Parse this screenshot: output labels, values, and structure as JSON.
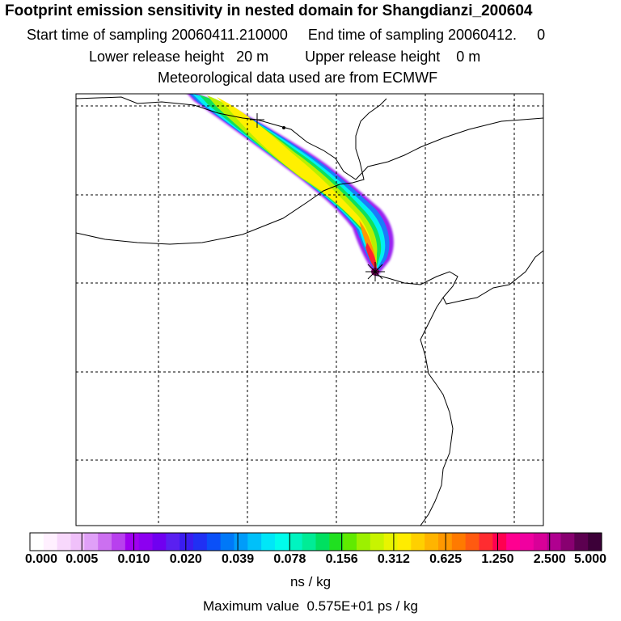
{
  "header": {
    "title": "Footprint emission sensitivity in nested domain for Shangdianzi_200604",
    "sampling_line": "Start time of sampling 20060411.210000     End time of sampling 20060412.     0",
    "release_line": "Lower release height   20 m         Upper release height    0 m",
    "met_line": "Meteorological data used are from ECMWF"
  },
  "legend": {
    "tick_labels": [
      "0.000",
      "0.005",
      "0.010",
      "0.020",
      "0.039",
      "0.078",
      "0.156",
      "0.312",
      "0.625",
      "1.250",
      "2.500",
      "5.000"
    ],
    "units": "ns / kg",
    "max_value_text": "Maximum value  0.575E+01 ps / kg",
    "colors": [
      "#ffffff",
      "#fff0ff",
      "#f8d8fc",
      "#f0c0fa",
      "#e0a0f8",
      "#cc70f0",
      "#b840ee",
      "#a000f0",
      "#8c00f0",
      "#7000f0",
      "#5a20f0",
      "#3a1cf0",
      "#2030f4",
      "#0a50f8",
      "#0078f8",
      "#009cfa",
      "#00c0fa",
      "#00e6f8",
      "#00fcec",
      "#00f4c0",
      "#00ec96",
      "#00e060",
      "#20e020",
      "#60ea00",
      "#9cf000",
      "#c8f400",
      "#e8f400",
      "#ffec00",
      "#ffd000",
      "#ffb400",
      "#ff9800",
      "#ff7a00",
      "#ff5a10",
      "#ff2c30",
      "#ff0050",
      "#ff0090",
      "#f000a0",
      "#d80098",
      "#b00090",
      "#880070",
      "#5c0050",
      "#3c0038"
    ]
  },
  "map": {
    "receptor": "Shangdianzi",
    "colors": {
      "frame": "#000000",
      "gridline": "#000000",
      "coast": "#000000"
    }
  }
}
